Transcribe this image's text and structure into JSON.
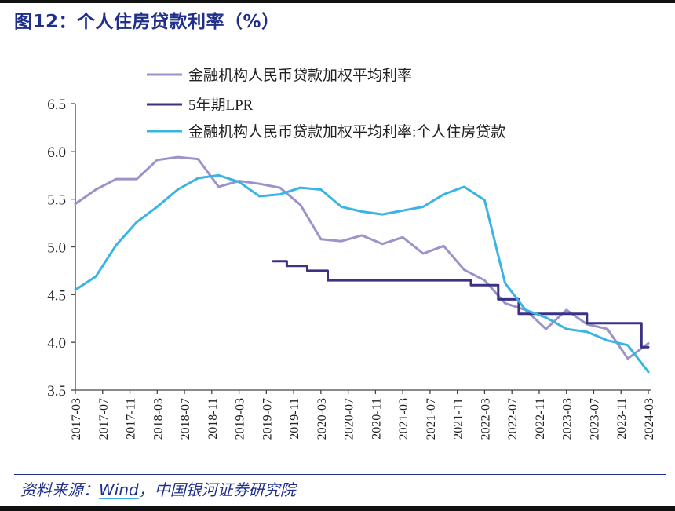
{
  "figure": {
    "title": "图12：个人住房贷款利率（%）",
    "source_prefix": "资料来源：",
    "source_wind": "Wind",
    "source_suffix": "，中国银河证券研究院"
  },
  "chart_data": {
    "type": "line",
    "title": "图12：个人住房贷款利率（%）",
    "xlabel": "",
    "ylabel": "",
    "ylim": [
      3.5,
      6.5
    ],
    "yticks": [
      3.5,
      4.0,
      4.5,
      5.0,
      5.5,
      6.0,
      6.5
    ],
    "ytick_labels": [
      "3.5",
      "4.0",
      "4.5",
      "5.0",
      "5.5",
      "6.0",
      "6.5"
    ],
    "xrange": [
      "2017-03",
      "2024-03"
    ],
    "xticks": [
      "2017-03",
      "2017-07",
      "2017-11",
      "2018-03",
      "2018-07",
      "2018-11",
      "2019-03",
      "2019-07",
      "2019-11",
      "2020-03",
      "2020-07",
      "2020-11",
      "2021-03",
      "2021-07",
      "2021-11",
      "2022-03",
      "2022-07",
      "2022-11",
      "2023-03",
      "2023-07",
      "2023-11",
      "2024-03"
    ],
    "grid": false,
    "legend_position": "top-left",
    "series": [
      {
        "name": "金融机构人民币贷款加权平均利率",
        "color": "#9b93c9",
        "step": false,
        "points": [
          [
            "2017-03",
            5.45
          ],
          [
            "2017-06",
            5.6
          ],
          [
            "2017-09",
            5.71
          ],
          [
            "2017-12",
            5.71
          ],
          [
            "2018-03",
            5.91
          ],
          [
            "2018-06",
            5.94
          ],
          [
            "2018-09",
            5.92
          ],
          [
            "2018-12",
            5.63
          ],
          [
            "2019-03",
            5.69
          ],
          [
            "2019-06",
            5.66
          ],
          [
            "2019-09",
            5.62
          ],
          [
            "2019-12",
            5.44
          ],
          [
            "2020-03",
            5.08
          ],
          [
            "2020-06",
            5.06
          ],
          [
            "2020-09",
            5.12
          ],
          [
            "2020-12",
            5.03
          ],
          [
            "2021-03",
            5.1
          ],
          [
            "2021-06",
            4.93
          ],
          [
            "2021-09",
            5.01
          ],
          [
            "2021-12",
            4.76
          ],
          [
            "2022-03",
            4.65
          ],
          [
            "2022-06",
            4.41
          ],
          [
            "2022-09",
            4.34
          ],
          [
            "2022-12",
            4.14
          ],
          [
            "2023-03",
            4.34
          ],
          [
            "2023-06",
            4.19
          ],
          [
            "2023-09",
            4.14
          ],
          [
            "2023-12",
            3.83
          ],
          [
            "2024-03",
            3.99
          ]
        ]
      },
      {
        "name": "5年期LPR",
        "color": "#3b3286",
        "step": true,
        "points": [
          [
            "2019-08",
            4.85
          ],
          [
            "2019-10",
            4.8
          ],
          [
            "2020-01",
            4.75
          ],
          [
            "2020-02",
            4.75
          ],
          [
            "2020-04",
            4.65
          ],
          [
            "2021-12",
            4.65
          ],
          [
            "2022-01",
            4.6
          ],
          [
            "2022-05",
            4.45
          ],
          [
            "2022-08",
            4.3
          ],
          [
            "2023-05",
            4.3
          ],
          [
            "2023-06",
            4.2
          ],
          [
            "2024-01",
            4.2
          ],
          [
            "2024-02",
            3.95
          ],
          [
            "2024-03",
            3.95
          ]
        ]
      },
      {
        "name": "金融机构人民币贷款加权平均利率:个人住房贷款",
        "color": "#3ab4e4",
        "step": false,
        "points": [
          [
            "2017-03",
            4.55
          ],
          [
            "2017-06",
            4.69
          ],
          [
            "2017-09",
            5.02
          ],
          [
            "2017-12",
            5.26
          ],
          [
            "2018-03",
            5.42
          ],
          [
            "2018-06",
            5.6
          ],
          [
            "2018-09",
            5.72
          ],
          [
            "2018-12",
            5.75
          ],
          [
            "2019-03",
            5.68
          ],
          [
            "2019-06",
            5.53
          ],
          [
            "2019-09",
            5.55
          ],
          [
            "2019-12",
            5.62
          ],
          [
            "2020-03",
            5.6
          ],
          [
            "2020-06",
            5.42
          ],
          [
            "2020-09",
            5.37
          ],
          [
            "2020-12",
            5.34
          ],
          [
            "2021-03",
            5.38
          ],
          [
            "2021-06",
            5.42
          ],
          [
            "2021-09",
            5.55
          ],
          [
            "2021-12",
            5.63
          ],
          [
            "2022-03",
            5.49
          ],
          [
            "2022-06",
            4.62
          ],
          [
            "2022-09",
            4.34
          ],
          [
            "2022-12",
            4.26
          ],
          [
            "2023-03",
            4.14
          ],
          [
            "2023-06",
            4.11
          ],
          [
            "2023-09",
            4.02
          ],
          [
            "2023-12",
            3.97
          ],
          [
            "2024-03",
            3.69
          ]
        ]
      }
    ]
  }
}
